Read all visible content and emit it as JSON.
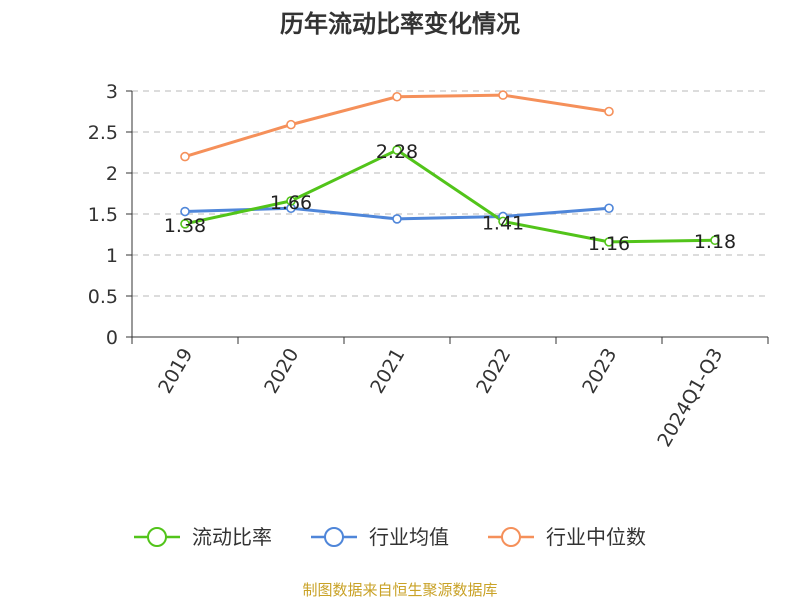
{
  "chart_data": {
    "type": "line",
    "title": "历年流动比率变化情况",
    "categories": [
      "2019",
      "2020",
      "2021",
      "2022",
      "2023",
      "2024Q1-Q3"
    ],
    "ylim": [
      0,
      3
    ],
    "yticks": [
      "0",
      "0.5",
      "1",
      "1.5",
      "2",
      "2.5",
      "3"
    ],
    "grid": true,
    "legend_position": "bottom",
    "series": [
      {
        "name": "流动比率",
        "color": "#52c41a",
        "values": [
          1.38,
          1.66,
          2.28,
          1.41,
          1.16,
          1.18
        ],
        "labels": [
          "1.38",
          "1.66",
          "2.28",
          "1.41",
          "1.16",
          "1.18"
        ]
      },
      {
        "name": "行业均值",
        "color": "#4f86d9",
        "values": [
          1.53,
          1.57,
          1.44,
          1.47,
          1.57,
          null
        ]
      },
      {
        "name": "行业中位数",
        "color": "#f5905a",
        "values": [
          2.2,
          2.59,
          2.93,
          2.95,
          2.75,
          null
        ]
      }
    ],
    "source": "制图数据来自恒生聚源数据库"
  }
}
